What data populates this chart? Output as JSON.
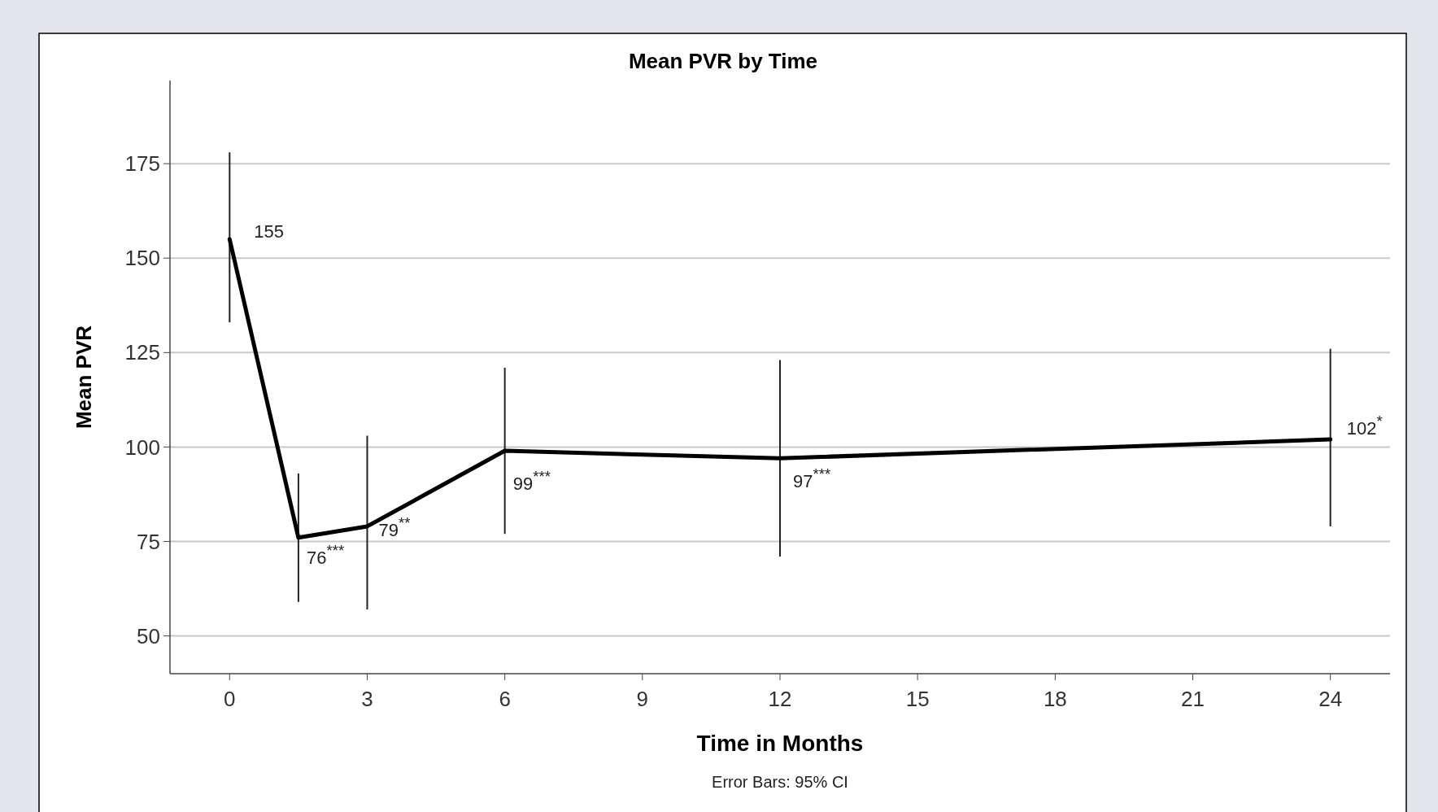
{
  "chart_data": {
    "type": "line",
    "title": "Mean PVR by Time",
    "xlabel": "Time in Months",
    "ylabel": "Mean PVR",
    "x": [
      0,
      1.5,
      3,
      6,
      12,
      24
    ],
    "series": [
      {
        "color": "#000000",
        "values": [
          155,
          76,
          79,
          99,
          97,
          102
        ],
        "errors": [
          [
            133,
            178
          ],
          [
            59,
            93
          ],
          [
            57,
            103
          ],
          [
            77,
            121
          ],
          [
            71,
            123
          ],
          [
            79,
            126
          ]
        ],
        "value_labels": [
          "155",
          "76$^{***}$",
          "79$^{**}$",
          "99$^{***}$",
          "97$^{***}$",
          "102$^{*}$"
        ]
      }
    ],
    "xlim": [
      -1.3,
      25.3
    ],
    "xticks": [
      0,
      3,
      6,
      9,
      12,
      15,
      18,
      21,
      24
    ],
    "ylim": [
      40,
      197
    ],
    "yticks": [
      50,
      75,
      100,
      125,
      150,
      175
    ],
    "grid": "y",
    "marker": "none",
    "line_style": "solid",
    "annotations": [
      "Error Bars: 95% CI"
    ]
  }
}
